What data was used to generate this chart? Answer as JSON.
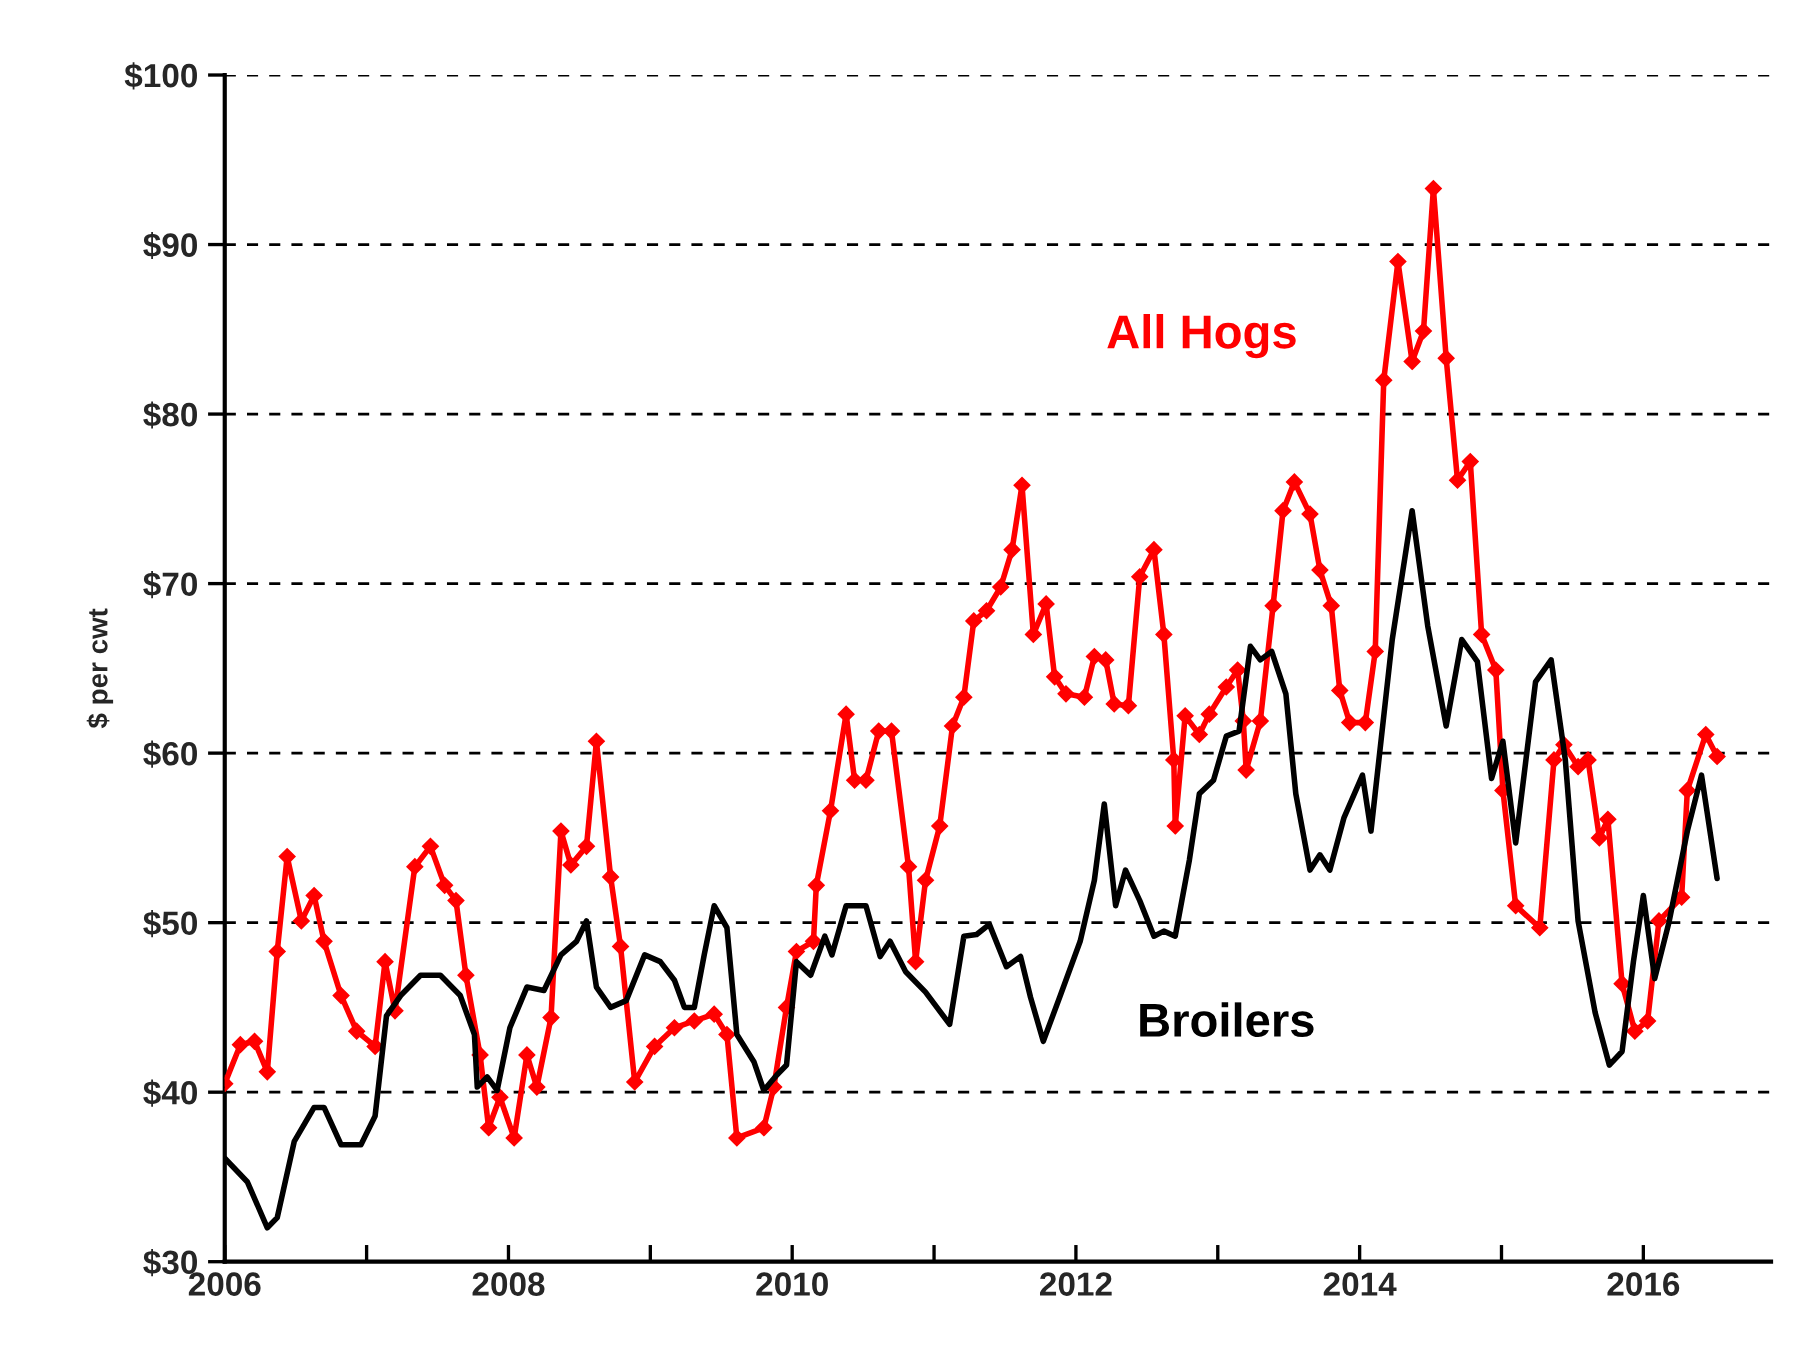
{
  "chart_data": {
    "type": "line",
    "ylabel": "$ per cwt",
    "xlim": [
      2006,
      2016.9
    ],
    "ylim": [
      30,
      100
    ],
    "xticks": [
      2006,
      {
        "value": 2007,
        "label": null
      },
      2008,
      {
        "value": 2009,
        "label": null
      },
      2010,
      {
        "value": 2011,
        "label": null
      },
      2012,
      {
        "value": 2013,
        "label": null
      },
      2014,
      {
        "value": 2015,
        "label": null
      },
      2016
    ],
    "yticks": [
      {
        "value": 30,
        "label": "$30"
      },
      {
        "value": 40,
        "label": "$40"
      },
      {
        "value": 50,
        "label": "$50"
      },
      {
        "value": 60,
        "label": "$60"
      },
      {
        "value": 70,
        "label": "$70"
      },
      {
        "value": 80,
        "label": "$80"
      },
      {
        "value": 90,
        "label": "$90"
      },
      {
        "value": 100,
        "label": "$100"
      }
    ],
    "grid": "y",
    "legend": false,
    "series": [
      {
        "name": "All Hogs",
        "color": "#ff0000",
        "marker": "diamond",
        "x": [
          2006.0,
          2006.11,
          2006.21,
          2006.3,
          2006.37,
          2006.44,
          2006.54,
          2006.63,
          2006.7,
          2006.82,
          2006.93,
          2007.06,
          2007.13,
          2007.2,
          2007.34,
          2007.45,
          2007.55,
          2007.63,
          2007.7,
          2007.8,
          2007.86,
          2007.94,
          2008.04,
          2008.13,
          2008.2,
          2008.3,
          2008.37,
          2008.44,
          2008.55,
          2008.62,
          2008.72,
          2008.79,
          2008.89,
          2009.03,
          2009.17,
          2009.31,
          2009.45,
          2009.54,
          2009.61,
          2009.8,
          2009.87,
          2009.96,
          2010.03,
          2010.15,
          2010.17,
          2010.27,
          2010.38,
          2010.44,
          2010.52,
          2010.61,
          2010.7,
          2010.82,
          2010.87,
          2010.94,
          2011.04,
          2011.13,
          2011.21,
          2011.28,
          2011.37,
          2011.47,
          2011.55,
          2011.62,
          2011.7,
          2011.79,
          2011.85,
          2011.93,
          2012.06,
          2012.13,
          2012.21,
          2012.27,
          2012.37,
          2012.45,
          2012.55,
          2012.62,
          2012.69,
          2012.7,
          2012.77,
          2012.87,
          2012.94,
          2013.06,
          2013.14,
          2013.18,
          2013.2,
          2013.3,
          2013.39,
          2013.46,
          2013.54,
          2013.65,
          2013.72,
          2013.8,
          2013.86,
          2013.93,
          2014.04,
          2014.11,
          2014.17,
          2014.27,
          2014.37,
          2014.45,
          2014.52,
          2014.61,
          2014.69,
          2014.78,
          2014.86,
          2014.96,
          2015.01,
          2015.1,
          2015.27,
          2015.37,
          2015.44,
          2015.54,
          2015.61,
          2015.69,
          2015.75,
          2015.85,
          2015.94,
          2016.03,
          2016.11,
          2016.27,
          2016.31,
          2016.44,
          2016.52
        ],
        "values": [
          40.5,
          42.8,
          43.0,
          41.2,
          48.3,
          53.9,
          50.1,
          51.6,
          48.9,
          45.7,
          43.6,
          42.7,
          47.7,
          44.8,
          53.3,
          54.5,
          52.2,
          51.3,
          46.9,
          42.2,
          37.9,
          39.7,
          37.3,
          42.2,
          40.3,
          44.4,
          55.4,
          53.4,
          54.5,
          60.7,
          52.7,
          48.6,
          40.6,
          42.7,
          43.8,
          44.2,
          44.6,
          43.4,
          37.3,
          37.9,
          40.3,
          45.0,
          48.3,
          48.9,
          52.2,
          56.6,
          62.3,
          58.4,
          58.4,
          61.3,
          61.3,
          53.3,
          47.7,
          52.5,
          55.7,
          61.6,
          63.3,
          67.8,
          68.4,
          69.8,
          72.0,
          75.8,
          67.0,
          68.8,
          64.5,
          63.5,
          63.3,
          65.7,
          65.5,
          62.9,
          62.8,
          70.4,
          72.0,
          67.0,
          59.6,
          55.7,
          62.2,
          61.1,
          62.3,
          63.9,
          64.9,
          61.9,
          59.0,
          61.9,
          68.7,
          74.3,
          76.0,
          74.1,
          70.8,
          68.7,
          63.7,
          61.8,
          61.8,
          66.0,
          82.0,
          89.0,
          83.1,
          84.9,
          93.3,
          83.3,
          76.1,
          77.2,
          67.0,
          64.9,
          57.8,
          51.0,
          49.7,
          59.6,
          60.5,
          59.2,
          59.6,
          55.0,
          56.1,
          46.4,
          43.6,
          44.2,
          50.1,
          51.5,
          57.8,
          61.1,
          59.8
        ]
      },
      {
        "name": "Broilers",
        "color": "#000000",
        "marker": "none",
        "x": [
          2006.0,
          2006.16,
          2006.3,
          2006.37,
          2006.49,
          2006.63,
          2006.7,
          2006.82,
          2006.96,
          2007.06,
          2007.14,
          2007.24,
          2007.38,
          2007.52,
          2007.66,
          2007.76,
          2007.78,
          2007.85,
          2007.92,
          2008.01,
          2008.13,
          2008.25,
          2008.37,
          2008.48,
          2008.55,
          2008.62,
          2008.72,
          2008.83,
          2008.96,
          2009.07,
          2009.17,
          2009.24,
          2009.31,
          2009.38,
          2009.45,
          2009.54,
          2009.61,
          2009.73,
          2009.8,
          2009.89,
          2009.96,
          2010.03,
          2010.13,
          2010.23,
          2010.28,
          2010.38,
          2010.52,
          2010.62,
          2010.69,
          2010.8,
          2010.94,
          2011.11,
          2011.21,
          2011.3,
          2011.39,
          2011.51,
          2011.61,
          2011.68,
          2011.77,
          2011.89,
          2012.03,
          2012.13,
          2012.2,
          2012.28,
          2012.35,
          2012.45,
          2012.55,
          2012.62,
          2012.7,
          2012.8,
          2012.87,
          2012.97,
          2013.06,
          2013.15,
          2013.23,
          2013.3,
          2013.38,
          2013.48,
          2013.55,
          2013.65,
          2013.72,
          2013.79,
          2013.89,
          2014.02,
          2014.08,
          2014.23,
          2014.37,
          2014.48,
          2014.61,
          2014.72,
          2014.83,
          2014.93,
          2015.01,
          2015.1,
          2015.24,
          2015.35,
          2015.45,
          2015.54,
          2015.66,
          2015.76,
          2015.85,
          2015.93,
          2016.0,
          2016.08,
          2016.18,
          2016.31,
          2016.41,
          2016.52
        ],
        "values": [
          36.1,
          34.7,
          32.0,
          32.6,
          37.1,
          39.1,
          39.1,
          36.9,
          36.9,
          38.6,
          44.5,
          45.7,
          46.9,
          46.9,
          45.7,
          43.4,
          40.3,
          40.9,
          40.1,
          43.8,
          46.2,
          46.0,
          48.1,
          48.9,
          50.1,
          46.2,
          45.0,
          45.4,
          48.1,
          47.7,
          46.6,
          45.0,
          45.0,
          48.1,
          51.0,
          49.7,
          43.4,
          41.8,
          40.1,
          41.0,
          41.6,
          47.7,
          46.9,
          49.2,
          48.1,
          51.0,
          51.0,
          48.0,
          48.9,
          47.1,
          45.9,
          44.0,
          49.2,
          49.3,
          49.9,
          47.4,
          48.0,
          45.6,
          43.0,
          45.7,
          48.9,
          52.5,
          57.0,
          51.0,
          53.1,
          51.3,
          49.2,
          49.5,
          49.2,
          53.7,
          57.6,
          58.4,
          61.0,
          61.3,
          66.3,
          65.5,
          66.0,
          63.5,
          57.6,
          53.1,
          54.0,
          53.1,
          56.2,
          58.7,
          55.4,
          66.7,
          74.3,
          67.5,
          61.6,
          66.7,
          65.4,
          58.5,
          60.7,
          54.7,
          64.2,
          65.5,
          59.6,
          50.1,
          44.7,
          41.6,
          42.4,
          47.7,
          51.6,
          46.7,
          50.0,
          55.4,
          58.7,
          52.6
        ]
      }
    ]
  }
}
